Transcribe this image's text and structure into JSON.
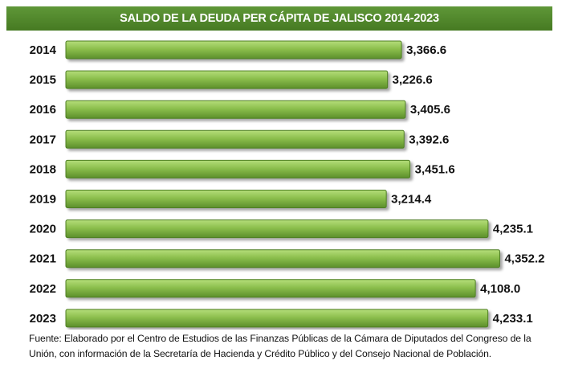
{
  "chart_data": {
    "type": "bar",
    "orientation": "horizontal",
    "title": "SALDO DE LA DEUDA PER CÁPITA DE JALISCO 2014-2023",
    "categories": [
      "2014",
      "2015",
      "2016",
      "2017",
      "2018",
      "2019",
      "2020",
      "2021",
      "2022",
      "2023"
    ],
    "values": [
      3366.6,
      3226.6,
      3405.6,
      3392.6,
      3451.6,
      3214.4,
      4235.1,
      4352.2,
      4108.0,
      4233.1
    ],
    "value_labels": [
      "3,366.6",
      "3,226.6",
      "3,405.6",
      "3,392.6",
      "3,451.6",
      "3,214.4",
      "4,235.1",
      "4,352.2",
      "4,108.0",
      "4,233.1"
    ],
    "bar_color": "#8cbf4d",
    "title_color": "#4f8a2b",
    "grid": false,
    "legend": "none"
  },
  "source_text": "Fuente: Elaborado por el Centro de Estudios de las Finanzas Públicas de la Cámara de Diputados del Congreso de la Unión, con información de la Secretaría de Hacienda y Crédito Público y del Consejo Nacional de Población."
}
